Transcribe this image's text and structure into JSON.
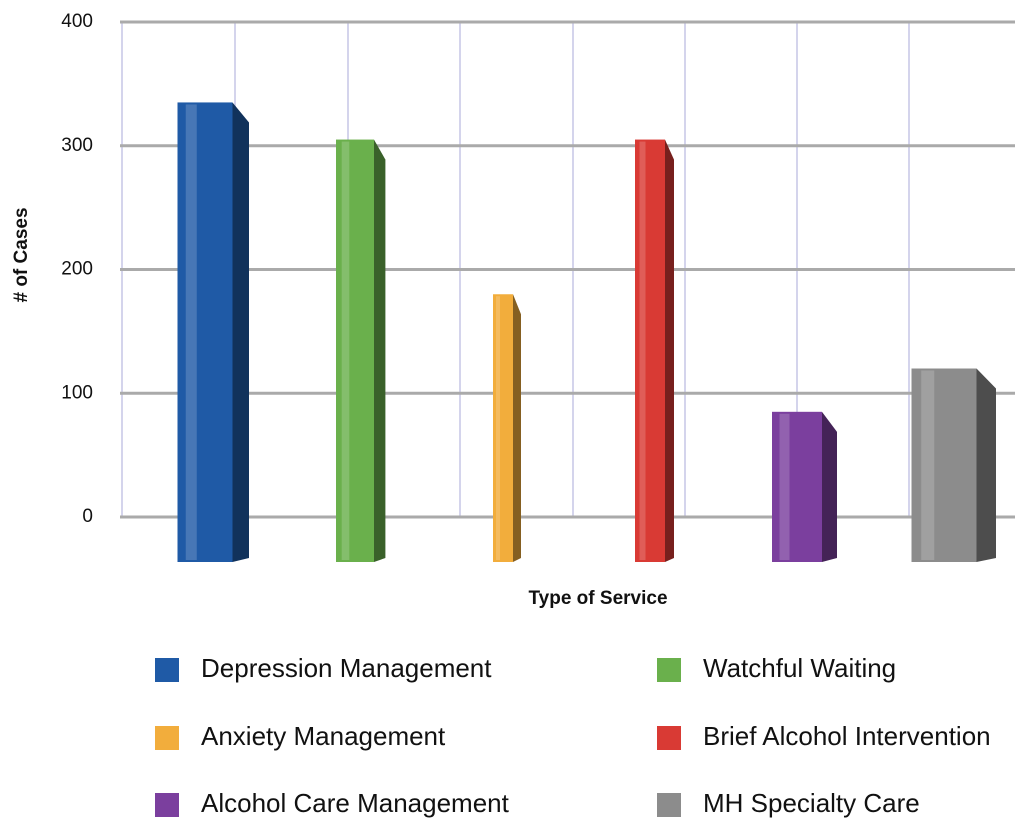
{
  "chart_data": {
    "type": "bar",
    "y_label": "# of Cases",
    "x_label": "Type of Service",
    "ylim": [
      0,
      400
    ],
    "yticks": [
      0,
      100,
      200,
      300,
      400
    ],
    "grid": true,
    "series": [
      {
        "name": "Depression Management",
        "color": "#1f5aa6",
        "values": [
          335
        ]
      },
      {
        "name": "Watchful Waiting",
        "color": "#6ab04c",
        "values": [
          305
        ]
      },
      {
        "name": "Anxiety Management",
        "color": "#f2ad3c",
        "values": [
          180
        ]
      },
      {
        "name": "Brief Alcohol Intervention",
        "color": "#d93a34",
        "values": [
          305
        ]
      },
      {
        "name": "Alcohol Care Management",
        "color": "#7b3f9e",
        "values": [
          85
        ]
      },
      {
        "name": "MH Specialty Care",
        "color": "#8c8c8c",
        "values": [
          120
        ]
      }
    ]
  }
}
